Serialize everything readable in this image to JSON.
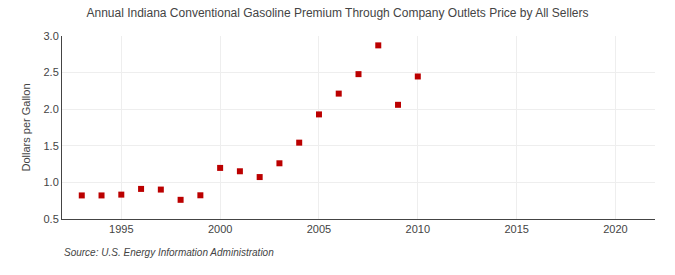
{
  "chart_data": {
    "type": "scatter",
    "title": "Annual Indiana Conventional Gasoline Premium Through Company Outlets Price by All Sellers",
    "ylabel": "Dollars per Gallon",
    "annotations": [
      "Source: U.S. Energy Information Administration"
    ],
    "x": [
      1993,
      1994,
      1995,
      1996,
      1997,
      1998,
      1999,
      2000,
      2001,
      2002,
      2003,
      2004,
      2005,
      2006,
      2007,
      2008,
      2009,
      2010
    ],
    "values": [
      0.822,
      0.822,
      0.833,
      0.911,
      0.902,
      0.762,
      0.824,
      1.198,
      1.152,
      1.073,
      1.261,
      1.543,
      1.929,
      2.213,
      2.479,
      2.872,
      2.06,
      2.447
    ],
    "xlim": [
      1992,
      2022
    ],
    "ylim": [
      0.5,
      3.0
    ],
    "xticks": [
      1995,
      2000,
      2005,
      2010,
      2015,
      2020
    ],
    "yticks": [
      0.5,
      {
        "value": 1,
        "label": "1.0"
      },
      1.5,
      {
        "value": 2,
        "label": "2.0"
      },
      2.5,
      {
        "value": 3,
        "label": "3.0"
      }
    ],
    "color": "#bb0000",
    "marker": "square",
    "grid": true
  }
}
